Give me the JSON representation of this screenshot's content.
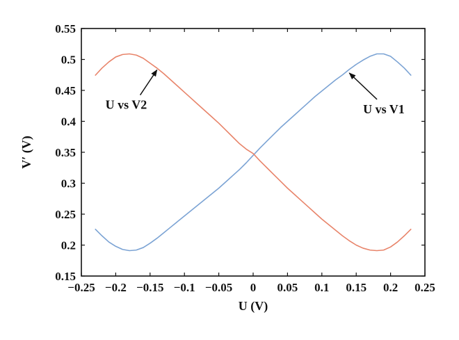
{
  "chart_data": {
    "type": "line",
    "xlabel": "U (V)",
    "ylabel": "V′ (V)",
    "xlim": [
      -0.25,
      0.25
    ],
    "ylim": [
      0.15,
      0.55
    ],
    "xticks": [
      "−0.25",
      "−0.2",
      "−0.15",
      "−0.1",
      "−0.05",
      "0",
      "0.05",
      "0.1",
      "0.15",
      "0.2",
      "0.25"
    ],
    "yticks": [
      "0.15",
      "0.2",
      "0.25",
      "0.3",
      "0.35",
      "0.4",
      "0.45",
      "0.5",
      "0.55"
    ],
    "grid": false,
    "legend": "none",
    "series": [
      {
        "name": "U vs V1",
        "color": "#7ba3d4",
        "x": [
          -0.23,
          -0.22,
          -0.21,
          -0.2,
          -0.19,
          -0.18,
          -0.17,
          -0.16,
          -0.15,
          -0.14,
          -0.13,
          -0.12,
          -0.11,
          -0.1,
          -0.09,
          -0.08,
          -0.07,
          -0.06,
          -0.05,
          -0.04,
          -0.03,
          -0.02,
          -0.01,
          0,
          0.01,
          0.02,
          0.03,
          0.04,
          0.05,
          0.06,
          0.07,
          0.08,
          0.09,
          0.1,
          0.11,
          0.12,
          0.13,
          0.14,
          0.15,
          0.16,
          0.17,
          0.18,
          0.19,
          0.2,
          0.21,
          0.22,
          0.23
        ],
        "y": [
          0.226,
          0.215,
          0.205,
          0.198,
          0.193,
          0.191,
          0.192,
          0.196,
          0.203,
          0.211,
          0.22,
          0.229,
          0.238,
          0.247,
          0.256,
          0.265,
          0.274,
          0.283,
          0.292,
          0.302,
          0.312,
          0.322,
          0.333,
          0.345,
          0.357,
          0.368,
          0.379,
          0.39,
          0.4,
          0.41,
          0.42,
          0.43,
          0.44,
          0.449,
          0.458,
          0.467,
          0.475,
          0.484,
          0.492,
          0.499,
          0.505,
          0.509,
          0.509,
          0.505,
          0.496,
          0.486,
          0.474
        ]
      },
      {
        "name": "U vs V2",
        "color": "#e8846a",
        "x": [
          -0.23,
          -0.22,
          -0.21,
          -0.2,
          -0.19,
          -0.18,
          -0.17,
          -0.16,
          -0.15,
          -0.14,
          -0.13,
          -0.12,
          -0.11,
          -0.1,
          -0.09,
          -0.08,
          -0.07,
          -0.06,
          -0.05,
          -0.04,
          -0.03,
          -0.02,
          -0.01,
          0,
          0.01,
          0.02,
          0.03,
          0.04,
          0.05,
          0.06,
          0.07,
          0.08,
          0.09,
          0.1,
          0.11,
          0.12,
          0.13,
          0.14,
          0.15,
          0.16,
          0.17,
          0.18,
          0.19,
          0.2,
          0.21,
          0.22,
          0.23
        ],
        "y": [
          0.474,
          0.486,
          0.496,
          0.504,
          0.508,
          0.509,
          0.507,
          0.502,
          0.494,
          0.486,
          0.477,
          0.467,
          0.457,
          0.447,
          0.437,
          0.427,
          0.417,
          0.407,
          0.397,
          0.386,
          0.375,
          0.364,
          0.355,
          0.348,
          0.336,
          0.325,
          0.314,
          0.303,
          0.292,
          0.282,
          0.272,
          0.262,
          0.252,
          0.242,
          0.233,
          0.224,
          0.215,
          0.207,
          0.2,
          0.195,
          0.192,
          0.191,
          0.192,
          0.197,
          0.205,
          0.215,
          0.226
        ]
      }
    ],
    "annotations": [
      {
        "text": "U vs V2",
        "text_x": -0.215,
        "text_y": 0.42,
        "arrow_to_x": -0.14,
        "arrow_to_y": 0.483
      },
      {
        "text": "U vs V1",
        "text_x": 0.16,
        "text_y": 0.413,
        "arrow_to_x": 0.14,
        "arrow_to_y": 0.478
      }
    ]
  }
}
